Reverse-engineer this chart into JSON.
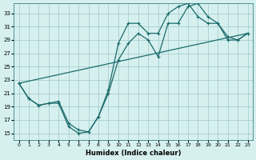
{
  "xlabel": "Humidex (Indice chaleur)",
  "ylabel": "",
  "background_color": "#d6f0ef",
  "grid_color": "#a0c8c8",
  "line_color": "#1a6b6b",
  "xlim": [
    -0.5,
    23.5
  ],
  "ylim": [
    14,
    34.5
  ],
  "yticks": [
    15,
    17,
    19,
    21,
    23,
    25,
    27,
    29,
    31,
    33
  ],
  "xticks": [
    0,
    1,
    2,
    3,
    4,
    5,
    6,
    7,
    8,
    9,
    10,
    11,
    12,
    13,
    14,
    15,
    16,
    17,
    18,
    19,
    20,
    21,
    22,
    23
  ],
  "line1_x": [
    0,
    1,
    2,
    3,
    4,
    5,
    6,
    7,
    8,
    9,
    10,
    11,
    12,
    13,
    14,
    15,
    16,
    17,
    18,
    19,
    20,
    21,
    22,
    23
  ],
  "line1_y": [
    22.5,
    20.2,
    19.2,
    19.5,
    19.5,
    16.0,
    15.0,
    15.2,
    17.5,
    21.0,
    26.0,
    28.5,
    30.0,
    29.0,
    26.5,
    31.5,
    31.5,
    34.0,
    34.5,
    32.5,
    31.5,
    29.0,
    29.0,
    30.0
  ],
  "line2_x": [
    0,
    1,
    2,
    3,
    4,
    5,
    6,
    7,
    8,
    9,
    10,
    11,
    12,
    13,
    14,
    15,
    16,
    17,
    18,
    19,
    20,
    21,
    22,
    23
  ],
  "line2_y": [
    22.5,
    20.2,
    19.2,
    19.5,
    19.8,
    16.5,
    15.5,
    15.2,
    17.5,
    21.5,
    28.5,
    31.5,
    31.5,
    30.0,
    30.0,
    33.0,
    34.0,
    34.5,
    32.5,
    31.5,
    31.5,
    29.5,
    29.0,
    30.0
  ],
  "line3_x": [
    0,
    23
  ],
  "line3_y": [
    22.5,
    30.0
  ]
}
